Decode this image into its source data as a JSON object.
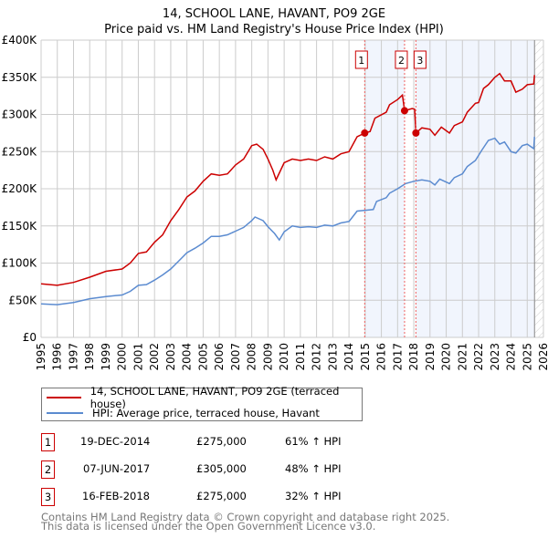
{
  "chart_data": {
    "type": "line",
    "title": "14, SCHOOL LANE, HAVANT, PO9 2GE",
    "subtitle": "Price paid vs. HM Land Registry's House Price Index (HPI)",
    "xlim": [
      1995,
      2026
    ],
    "ylim": [
      0,
      400000
    ],
    "x_ticks": [
      "1995",
      "1996",
      "1997",
      "1998",
      "1999",
      "2000",
      "2001",
      "2002",
      "2003",
      "2004",
      "2005",
      "2006",
      "2007",
      "2008",
      "2009",
      "2010",
      "2011",
      "2012",
      "2013",
      "2014",
      "2015",
      "2016",
      "2017",
      "2018",
      "2019",
      "2020",
      "2021",
      "2022",
      "2023",
      "2024",
      "2025",
      "2026"
    ],
    "y_ticks": [
      {
        "v": 0,
        "label": "£0"
      },
      {
        "v": 50000,
        "label": "£50K"
      },
      {
        "v": 100000,
        "label": "£100K"
      },
      {
        "v": 150000,
        "label": "£150K"
      },
      {
        "v": 200000,
        "label": "£200K"
      },
      {
        "v": 250000,
        "label": "£250K"
      },
      {
        "v": 300000,
        "label": "£300K"
      },
      {
        "v": 350000,
        "label": "£350K"
      },
      {
        "v": 400000,
        "label": "£400K"
      }
    ],
    "grid": true,
    "series": [
      {
        "name": "14, SCHOOL LANE, HAVANT, PO9 2GE (terraced house)",
        "color": "#cc0000",
        "x": [
          1995,
          1996,
          1997,
          1998,
          1999,
          2000,
          2000.5,
          2001,
          2001.5,
          2002,
          2002.5,
          2003,
          2003.5,
          2004,
          2004.5,
          2005,
          2005.5,
          2006,
          2006.5,
          2007,
          2007.5,
          2008,
          2008.3,
          2008.7,
          2009,
          2009.3,
          2009.5,
          2010,
          2010.5,
          2011,
          2011.5,
          2012,
          2012.5,
          2013,
          2013.5,
          2014,
          2014.5,
          2014.97,
          2015.3,
          2015.6,
          2016.3,
          2016.5,
          2017,
          2017.3,
          2017.43,
          2017.9,
          2018.05,
          2018.13,
          2018.5,
          2019,
          2019.3,
          2019.7,
          2020.2,
          2020.5,
          2021,
          2021.3,
          2021.8,
          2022,
          2022.3,
          2022.6,
          2023,
          2023.3,
          2023.6,
          2024,
          2024.3,
          2024.7,
          2025,
          2025.4,
          2025.45
        ],
        "values": [
          72000,
          70000,
          74000,
          81000,
          89000,
          92000,
          100000,
          113000,
          115000,
          128000,
          138000,
          157000,
          172000,
          189000,
          197000,
          210000,
          220000,
          218000,
          220000,
          232000,
          240000,
          258000,
          260000,
          253000,
          240000,
          225000,
          212000,
          235000,
          240000,
          238000,
          240000,
          238000,
          243000,
          240000,
          247000,
          250000,
          270000,
          275000,
          277000,
          295000,
          303000,
          313000,
          320000,
          326000,
          305000,
          308000,
          307000,
          275000,
          282000,
          280000,
          272000,
          283000,
          275000,
          285000,
          290000,
          303000,
          315000,
          316000,
          335000,
          340000,
          350000,
          355000,
          345000,
          345000,
          330000,
          334000,
          340000,
          341000,
          353000
        ]
      },
      {
        "name": "HPI: Average price, terraced house, Havant",
        "color": "#5b8bd0",
        "x": [
          1995,
          1996,
          1997,
          1998,
          1999,
          2000,
          2000.5,
          2001,
          2001.5,
          2002,
          2002.5,
          2003,
          2003.5,
          2004,
          2004.5,
          2005,
          2005.5,
          2006,
          2006.5,
          2007,
          2007.5,
          2008,
          2008.2,
          2008.7,
          2009,
          2009.4,
          2009.7,
          2010,
          2010.5,
          2011,
          2011.5,
          2012,
          2012.5,
          2013,
          2013.5,
          2014,
          2014.5,
          2015,
          2015.5,
          2015.7,
          2016.3,
          2016.5,
          2017,
          2017.5,
          2018,
          2018.5,
          2019,
          2019.3,
          2019.6,
          2020.2,
          2020.5,
          2021,
          2021.3,
          2021.8,
          2022.2,
          2022.6,
          2023,
          2023.3,
          2023.6,
          2024,
          2024.3,
          2024.7,
          2025,
          2025.4,
          2025.45
        ],
        "values": [
          45000,
          44000,
          47000,
          52000,
          55000,
          57000,
          62000,
          70000,
          71000,
          77000,
          84000,
          92000,
          103000,
          114000,
          120000,
          127000,
          136000,
          136000,
          138000,
          143000,
          148000,
          157000,
          162000,
          157000,
          149000,
          140000,
          131000,
          142000,
          150000,
          148000,
          149000,
          148000,
          151000,
          150000,
          154000,
          156000,
          170000,
          171000,
          172000,
          183000,
          188000,
          194000,
          200000,
          207000,
          210000,
          212000,
          210000,
          205000,
          213000,
          207000,
          215000,
          220000,
          230000,
          238000,
          252000,
          265000,
          268000,
          260000,
          263000,
          250000,
          248000,
          258000,
          260000,
          254000,
          270000
        ]
      }
    ],
    "sales": [
      {
        "label": "1",
        "x": 2014.97,
        "value": 275000
      },
      {
        "label": "2",
        "x": 2017.43,
        "value": 305000
      },
      {
        "label": "3",
        "x": 2018.13,
        "value": 275000
      }
    ],
    "shaded_ranges": [
      [
        2014.97,
        2017.43
      ],
      [
        2018.13,
        2025.45
      ]
    ],
    "future_hatch_from": 2025.45,
    "legend_position": "bottom"
  },
  "legend": {
    "items": [
      "14, SCHOOL LANE, HAVANT, PO9 2GE (terraced house)",
      "HPI: Average price, terraced house, Havant"
    ],
    "colors": [
      "#cc0000",
      "#5b8bd0"
    ]
  },
  "table": [
    {
      "num": "1",
      "date": "19-DEC-2014",
      "price": "£275,000",
      "hpi": "61% ↑ HPI"
    },
    {
      "num": "2",
      "date": "07-JUN-2017",
      "price": "£305,000",
      "hpi": "48% ↑ HPI"
    },
    {
      "num": "3",
      "date": "16-FEB-2018",
      "price": "£275,000",
      "hpi": "32% ↑ HPI"
    }
  ],
  "footer": [
    "Contains HM Land Registry data © Crown copyright and database right 2025.",
    "This data is licensed under the Open Government Licence v3.0."
  ]
}
